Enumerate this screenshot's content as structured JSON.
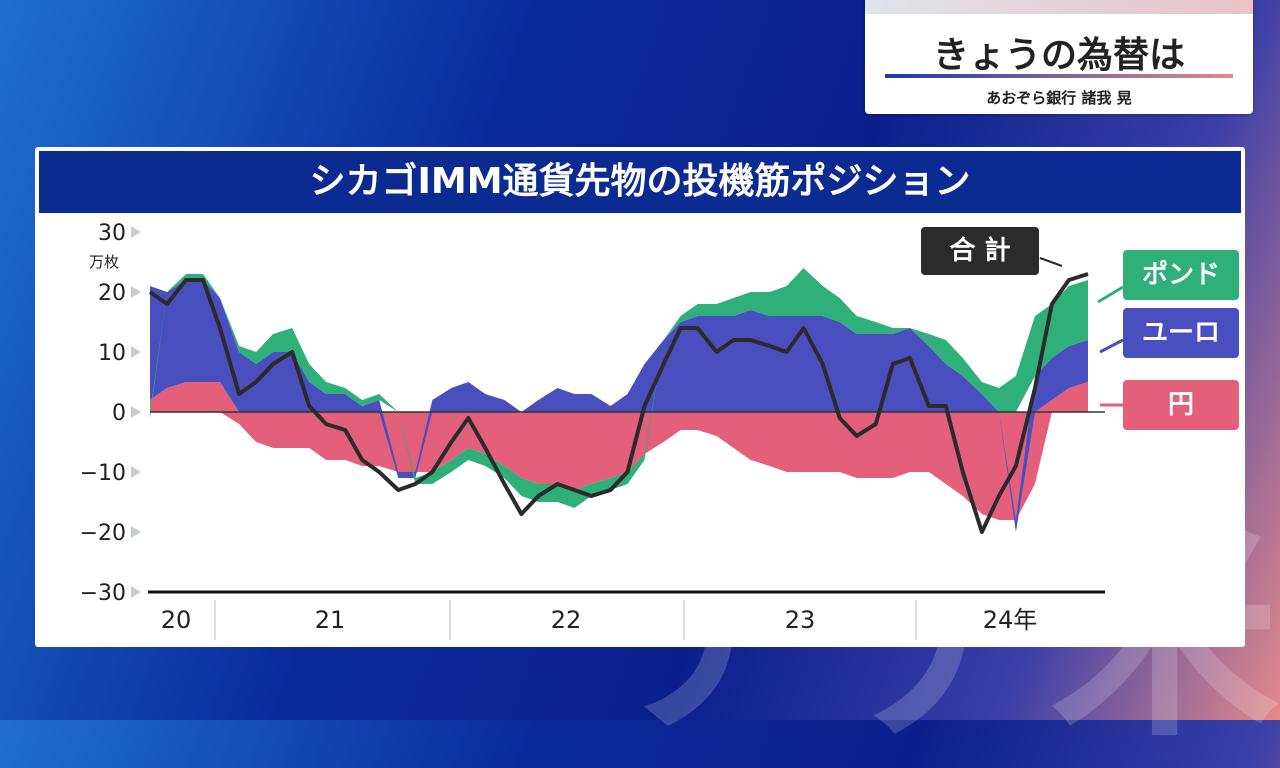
{
  "header": {
    "title": "きょうの為替は",
    "subtitle": "あおぞら銀行 諸我 晃"
  },
  "watermark": "ア丿米",
  "colors": {
    "yen": "#e4607a",
    "euro": "#4a4fbf",
    "pound": "#2fb07a",
    "total": "#2b2b2b",
    "title_bg": "#0b2a92"
  },
  "chart_data": {
    "type": "area",
    "title": "シカゴIMM通貨先物の投機筋ポジション",
    "ylabel": "万枚",
    "ylim": [
      -30,
      30
    ],
    "yticks": [
      "30",
      "20",
      "10",
      "0",
      "−10",
      "−20",
      "−30"
    ],
    "xlim": [
      2020.25,
      2024.75
    ],
    "x_tick_labels": [
      "20",
      "21",
      "22",
      "23",
      "24年"
    ],
    "x_tick_positions": [
      2020.5,
      2021,
      2022,
      2023,
      2024
    ],
    "legend": [
      "合 計",
      "ポンド",
      "ユーロ",
      "円"
    ],
    "x": [
      2020.25,
      2020.33,
      2020.42,
      2020.5,
      2020.58,
      2020.67,
      2020.75,
      2020.83,
      2020.92,
      2021.0,
      2021.08,
      2021.17,
      2021.25,
      2021.33,
      2021.42,
      2021.5,
      2021.58,
      2021.67,
      2021.75,
      2021.83,
      2021.92,
      2022.0,
      2022.08,
      2022.17,
      2022.25,
      2022.33,
      2022.42,
      2022.5,
      2022.58,
      2022.67,
      2022.75,
      2022.83,
      2022.92,
      2023.0,
      2023.08,
      2023.17,
      2023.25,
      2023.33,
      2023.42,
      2023.5,
      2023.58,
      2023.67,
      2023.75,
      2023.83,
      2023.92,
      2024.0,
      2024.08,
      2024.17,
      2024.25,
      2024.33,
      2024.42,
      2024.5,
      2024.58,
      2024.67
    ],
    "series": [
      {
        "name": "円",
        "values": [
          2,
          4,
          5,
          5,
          5,
          -2,
          -5,
          -6,
          -6,
          -6,
          -8,
          -8,
          -9,
          -9,
          -10,
          -10,
          -10,
          -8,
          -6,
          -7,
          -9,
          -11,
          -12,
          -12,
          -13,
          -12,
          -11,
          -10,
          -7,
          -5,
          -3,
          -3,
          -4,
          -6,
          -8,
          -9,
          -10,
          -10,
          -10,
          -10,
          -11,
          -11,
          -11,
          -10,
          -10,
          -12,
          -14,
          -17,
          -18,
          -18,
          -12,
          2,
          4,
          5
        ]
      },
      {
        "name": "ユーロ",
        "values": [
          19,
          16,
          17,
          17,
          14,
          10,
          8,
          10,
          10,
          5,
          3,
          3,
          1,
          2,
          -1,
          -1,
          2,
          4,
          5,
          3,
          2,
          0,
          2,
          4,
          3,
          3,
          1,
          3,
          8,
          12,
          15,
          16,
          16,
          16,
          17,
          16,
          16,
          16,
          16,
          15,
          13,
          13,
          13,
          14,
          11,
          8,
          6,
          3,
          0,
          -2,
          6,
          7,
          7,
          7
        ]
      },
      {
        "name": "ポンド",
        "values": [
          -1,
          0,
          1,
          1,
          0,
          1,
          2,
          3,
          4,
          3,
          2,
          1,
          1,
          1,
          0,
          -1,
          -2,
          -2,
          -2,
          -2,
          -2,
          -3,
          -3,
          -3,
          -3,
          -2,
          -2,
          -2,
          -1,
          0,
          1,
          2,
          2,
          3,
          3,
          4,
          5,
          8,
          5,
          4,
          3,
          2,
          1,
          0,
          2,
          4,
          3,
          2,
          4,
          6,
          10,
          9,
          10,
          10
        ]
      },
      {
        "name": "合 計",
        "values": [
          20,
          18,
          22,
          22,
          14,
          3,
          5,
          8,
          10,
          1,
          -2,
          -3,
          -8,
          -10,
          -13,
          -12,
          -10,
          -5,
          -1,
          -6,
          -12,
          -17,
          -14,
          -12,
          -13,
          -14,
          -13,
          -10,
          1,
          8,
          14,
          14,
          10,
          12,
          12,
          11,
          10,
          14,
          8,
          -1,
          -4,
          -2,
          8,
          9,
          1,
          1,
          -10,
          -20,
          -14,
          -9,
          4,
          18,
          22,
          23
        ]
      }
    ]
  }
}
